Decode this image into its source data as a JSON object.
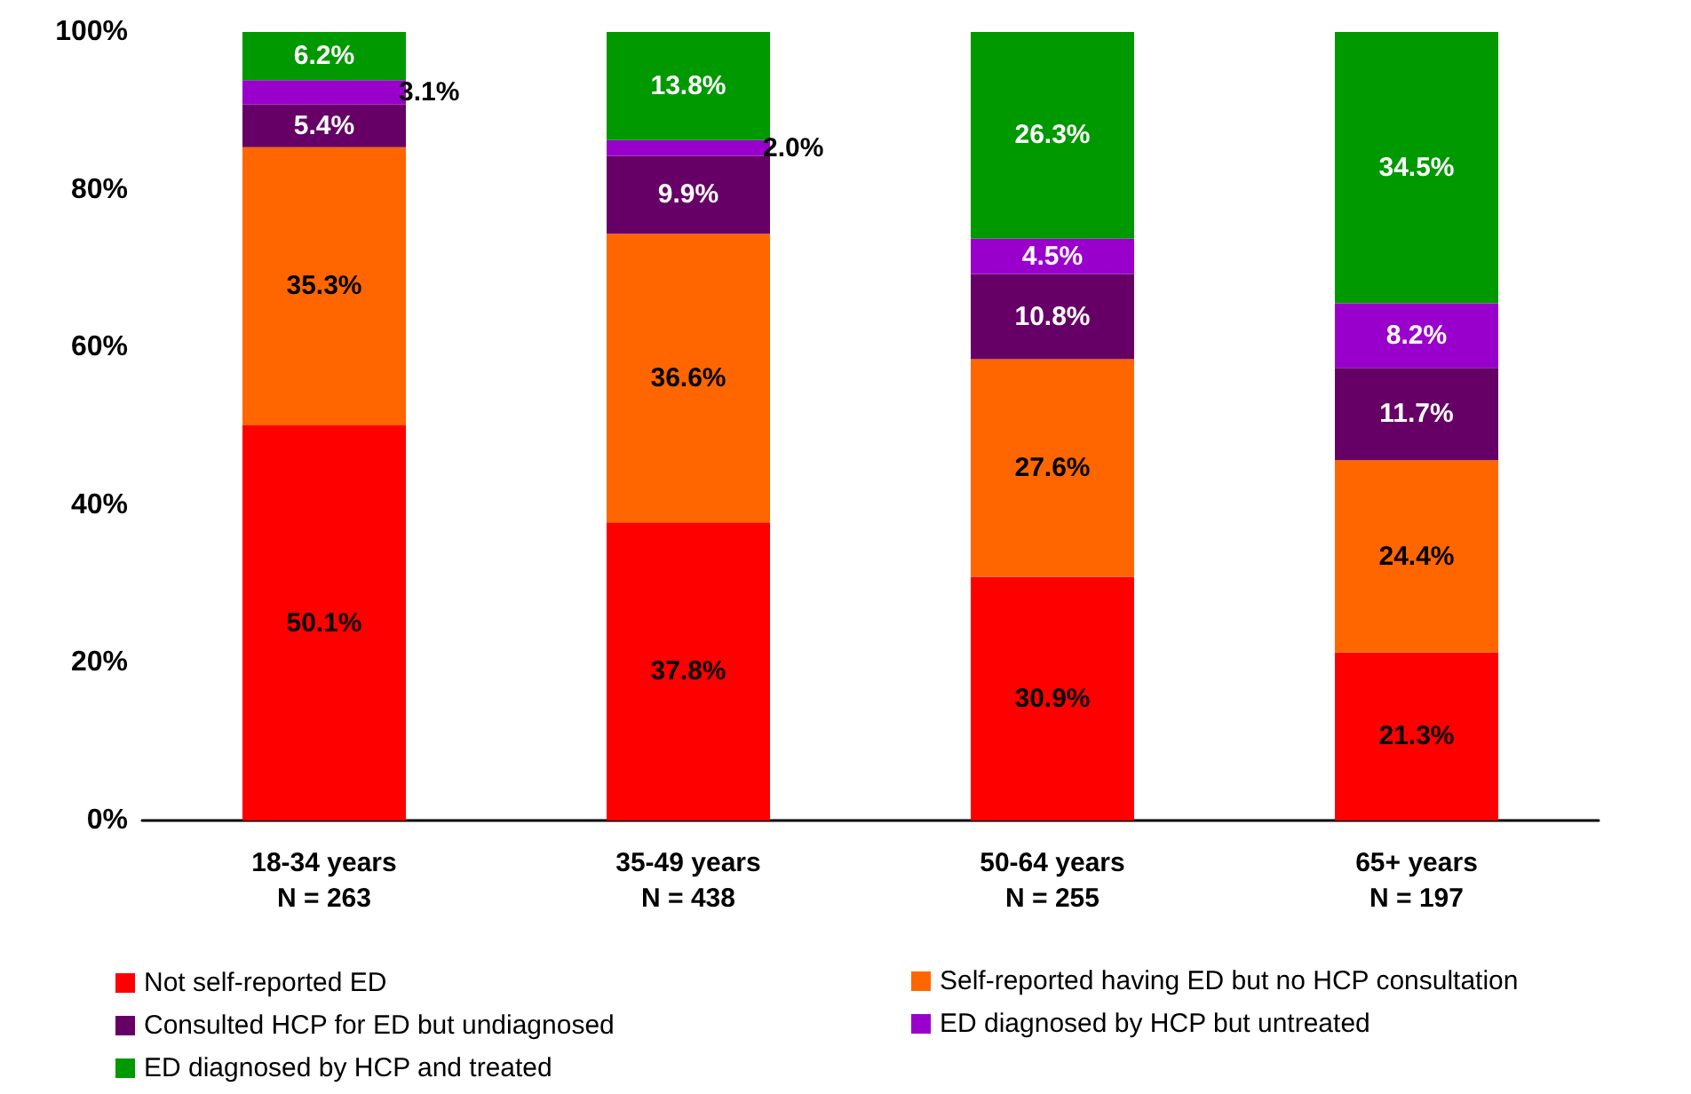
{
  "chart_data": {
    "type": "bar",
    "stacked": true,
    "categories": [
      "18-34 years\nN = 263",
      "35-49 years\nN = 438",
      "50-64 years\nN = 255",
      "65+ years\nN = 197"
    ],
    "series": [
      {
        "name": "Not self-reported ED",
        "color": "#ff0000",
        "values": [
          50.1,
          37.8,
          30.9,
          21.3
        ],
        "value_labels": [
          "50.1%",
          "37.8%",
          "30.9%",
          "21.3%"
        ]
      },
      {
        "name": "Self-reported having ED but no HCP consultation",
        "color": "#ff6600",
        "values": [
          35.3,
          36.6,
          27.6,
          24.4
        ],
        "value_labels": [
          "35.3%",
          "36.6%",
          "27.6%",
          "24.4%"
        ]
      },
      {
        "name": "Consulted HCP for ED but undiagnosed",
        "color": "#660066",
        "values": [
          5.4,
          9.9,
          10.8,
          11.7
        ],
        "value_labels": [
          "5.4%",
          "9.9%",
          "10.8%",
          "11.7%"
        ]
      },
      {
        "name": "ED diagnosed by HCP but untreated",
        "color": "#9900cc",
        "values": [
          3.1,
          2.0,
          4.5,
          8.2
        ],
        "value_labels": [
          "3.1%",
          "2.0%",
          "4.5%",
          "8.2%"
        ]
      },
      {
        "name": "ED diagnosed by HCP and treated",
        "color": "#009900",
        "values": [
          6.2,
          13.8,
          26.3,
          34.5
        ],
        "value_labels": [
          "6.2%",
          "13.8%",
          "26.3%",
          "34.5%"
        ]
      }
    ],
    "ylim": [
      0,
      100
    ],
    "yticks": [
      {
        "value": 0,
        "label": "0%"
      },
      {
        "value": 20,
        "label": "20%"
      },
      {
        "value": 40,
        "label": "40%"
      },
      {
        "value": 60,
        "label": "60%"
      },
      {
        "value": 80,
        "label": "80%"
      },
      {
        "value": 100,
        "label": "100%"
      }
    ],
    "grid": false,
    "legend": "bottom"
  }
}
